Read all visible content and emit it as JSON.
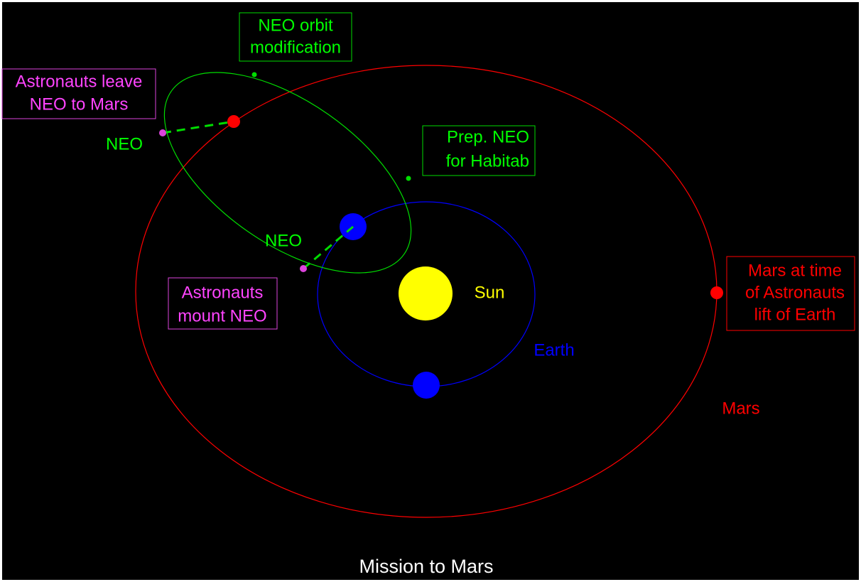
{
  "title": "Mission to Mars",
  "labels": {
    "neo_orbit_modification": [
      "NEO orbit",
      "modification"
    ],
    "astronauts_leave": [
      "Astronauts leave",
      "NEO to Mars"
    ],
    "neo_upper": "NEO",
    "prep_neo": [
      "Prep. NEO",
      "for Habitab"
    ],
    "neo_lower": "NEO",
    "astronauts_mount": [
      "Astronauts",
      "mount NEO"
    ],
    "mars_at_time": [
      "Mars at time",
      "of Astronauts",
      "lift of Earth"
    ],
    "mars": "Mars",
    "earth": "Earth",
    "sun": "Sun"
  }
}
